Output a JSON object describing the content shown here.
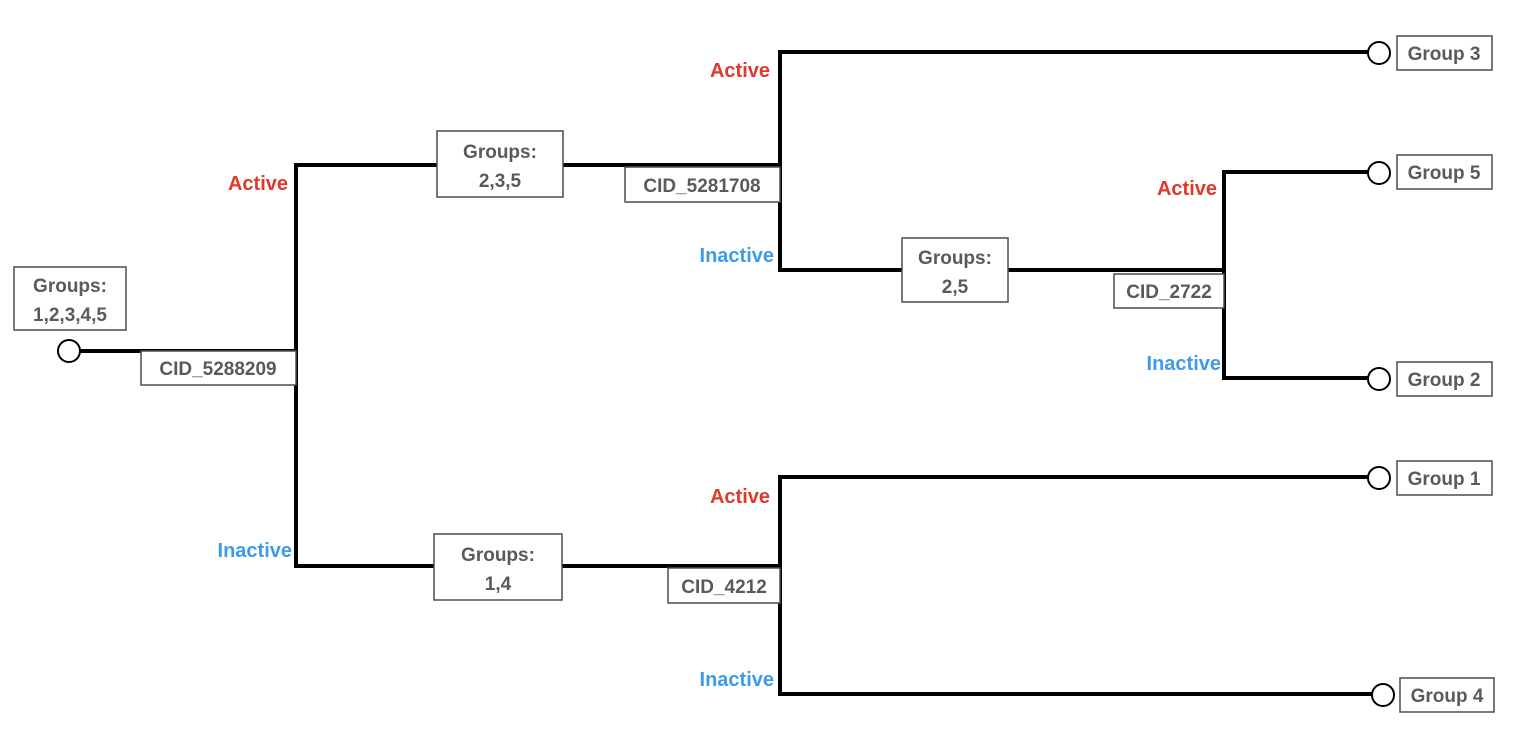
{
  "colors": {
    "active": "#e0392a",
    "inactive": "#3d9be9",
    "edge": "#000000",
    "box_text": "#5a5a5a"
  },
  "root": {
    "groups_line1": "Groups:",
    "groups_line2": "1,2,3,4,5",
    "split": "CID_5288209"
  },
  "nodes": {
    "n235": {
      "groups_line1": "Groups:",
      "groups_line2": "2,3,5",
      "split": "CID_5281708"
    },
    "n14": {
      "groups_line1": "Groups:",
      "groups_line2": "1,4",
      "split": "CID_4212"
    },
    "n25": {
      "groups_line1": "Groups:",
      "groups_line2": "2,5",
      "split": "CID_2722"
    }
  },
  "labels": {
    "active": "Active",
    "inactive": "Inactive"
  },
  "leaves": {
    "group3": "Group 3",
    "group5": "Group 5",
    "group2": "Group 2",
    "group1": "Group 1",
    "group4": "Group 4"
  }
}
